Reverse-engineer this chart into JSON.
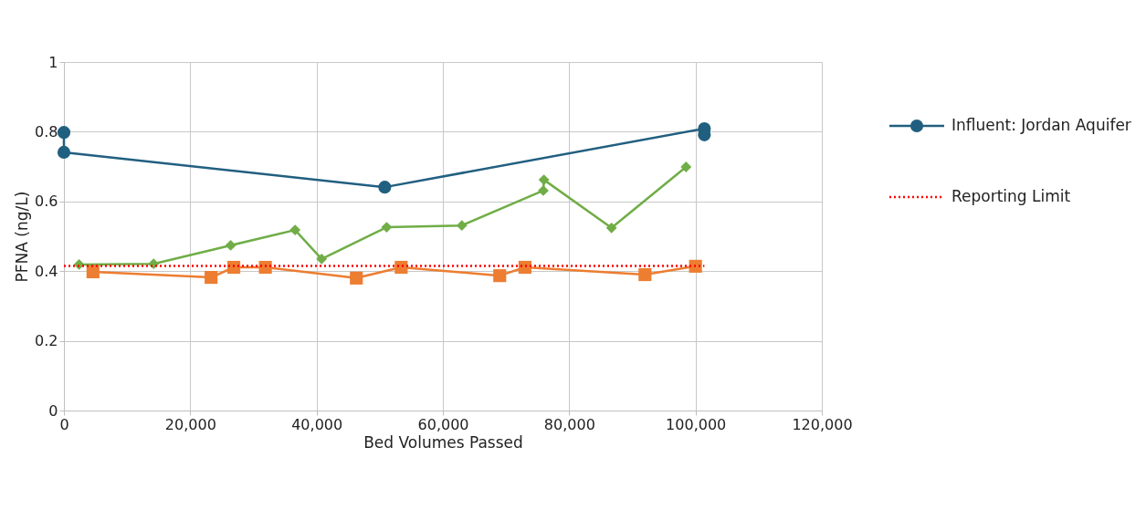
{
  "chart_data": {
    "type": "line",
    "xlabel": "Bed Volumes Passed",
    "ylabel": "PFNA (ng/L)",
    "xlim": [
      0,
      120000
    ],
    "xticks": [
      {
        "value": 0,
        "label": "0"
      },
      {
        "value": 20000,
        "label": "20,000"
      },
      {
        "value": 40000,
        "label": "40,000"
      },
      {
        "value": 60000,
        "label": "60,000"
      },
      {
        "value": 80000,
        "label": "80,000"
      },
      {
        "value": 100000,
        "label": "100,000"
      },
      {
        "value": 120000,
        "label": "120,000"
      }
    ],
    "ylim": [
      0,
      1
    ],
    "yticks": [
      0,
      0.2,
      0.4,
      0.6,
      0.8,
      1
    ],
    "grid": true,
    "legend": "right",
    "series": [
      {
        "name": "Influent: Jordan Aquifer",
        "color": "#215f80",
        "marker": "circle",
        "line_style": "solid",
        "x": [
          0,
          0,
          50800,
          101400,
          101400
        ],
        "values": [
          0.798,
          0.741,
          0.641,
          0.809,
          0.791
        ]
      },
      {
        "color": "#70ad47",
        "marker": "diamond",
        "line_style": "solid",
        "x": [
          2400,
          14200,
          26400,
          36600,
          40800,
          51100,
          63000,
          75900,
          76000,
          86700,
          98500
        ],
        "values": [
          0.419,
          0.421,
          0.474,
          0.518,
          0.435,
          0.526,
          0.531,
          0.631,
          0.662,
          0.524,
          0.699
        ]
      },
      {
        "color": "#ed7d31",
        "marker": "square",
        "line_style": "solid",
        "x": [
          4600,
          23300,
          26900,
          31900,
          46300,
          53400,
          69000,
          73000,
          92000,
          100000
        ],
        "values": [
          0.398,
          0.382,
          0.411,
          0.411,
          0.38,
          0.411,
          0.387,
          0.411,
          0.39,
          0.414
        ]
      },
      {
        "name": "Reporting Limit",
        "color": "#ff0000",
        "marker": "none",
        "line_style": "dotted",
        "x": [
          0,
          101400
        ],
        "values": [
          0.415,
          0.415
        ]
      }
    ]
  }
}
